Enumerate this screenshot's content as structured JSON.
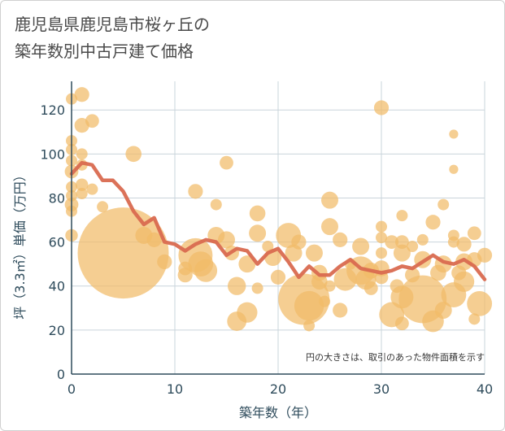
{
  "title": {
    "line1": "鹿児島県鹿児島市桜ヶ丘の",
    "line2": "築年数別中古戸建て価格"
  },
  "chart_data": {
    "type": "scatter",
    "title": "鹿児島県鹿児島市桜ヶ丘の築年数別中古戸建て価格",
    "xlabel": "築年数（年）",
    "ylabel": "坪（3.3㎡）単価（万円）",
    "xlim": [
      0,
      40
    ],
    "ylim": [
      0,
      133
    ],
    "xticks": [
      0,
      10,
      20,
      30,
      40
    ],
    "yticks": [
      0,
      20,
      40,
      60,
      80,
      100,
      120
    ],
    "grid": true,
    "annotation": "円の大きさは、取引のあった物件面積を示す",
    "colors": {
      "bubble": "#f1bb68",
      "line": "#d96a50",
      "grid": "#c9d4db",
      "text": "#2f4c5c"
    },
    "bubbles": [
      {
        "x": 0,
        "y": 125,
        "s": 1
      },
      {
        "x": 0,
        "y": 106,
        "s": 1
      },
      {
        "x": 0,
        "y": 102,
        "s": 1
      },
      {
        "x": 0,
        "y": 97,
        "s": 1
      },
      {
        "x": 0,
        "y": 92,
        "s": 1.2
      },
      {
        "x": 0,
        "y": 85,
        "s": 1
      },
      {
        "x": 0,
        "y": 81,
        "s": 1
      },
      {
        "x": 0,
        "y": 77,
        "s": 1.2
      },
      {
        "x": 0,
        "y": 74,
        "s": 1
      },
      {
        "x": 0,
        "y": 63,
        "s": 1.1
      },
      {
        "x": 1,
        "y": 127,
        "s": 1.3
      },
      {
        "x": 1,
        "y": 113,
        "s": 1.3
      },
      {
        "x": 1,
        "y": 100,
        "s": 1
      },
      {
        "x": 1,
        "y": 95,
        "s": 1
      },
      {
        "x": 1,
        "y": 86,
        "s": 1.1
      },
      {
        "x": 1,
        "y": 82,
        "s": 1
      },
      {
        "x": 2,
        "y": 115,
        "s": 1.2
      },
      {
        "x": 2,
        "y": 84,
        "s": 1
      },
      {
        "x": 3,
        "y": 76,
        "s": 1
      },
      {
        "x": 5,
        "y": 55,
        "s": 8
      },
      {
        "x": 6,
        "y": 100,
        "s": 1.4
      },
      {
        "x": 7,
        "y": 63,
        "s": 1.5
      },
      {
        "x": 8,
        "y": 61,
        "s": 1.3
      },
      {
        "x": 9,
        "y": 51,
        "s": 1.3
      },
      {
        "x": 11,
        "y": 48,
        "s": 1.2
      },
      {
        "x": 11,
        "y": 45,
        "s": 1.3
      },
      {
        "x": 12,
        "y": 83,
        "s": 1.3
      },
      {
        "x": 12,
        "y": 54,
        "s": 3
      },
      {
        "x": 12.5,
        "y": 50,
        "s": 2.2
      },
      {
        "x": 13,
        "y": 47,
        "s": 2
      },
      {
        "x": 14,
        "y": 77,
        "s": 1
      },
      {
        "x": 14,
        "y": 63,
        "s": 1.5
      },
      {
        "x": 15,
        "y": 96,
        "s": 1.2
      },
      {
        "x": 15,
        "y": 61,
        "s": 1.5
      },
      {
        "x": 15.5,
        "y": 55,
        "s": 1.3
      },
      {
        "x": 16,
        "y": 40,
        "s": 1.6
      },
      {
        "x": 16,
        "y": 24,
        "s": 1.7
      },
      {
        "x": 17,
        "y": 28,
        "s": 1.8
      },
      {
        "x": 17,
        "y": 50,
        "s": 1.5
      },
      {
        "x": 18,
        "y": 73,
        "s": 1.4
      },
      {
        "x": 18,
        "y": 64,
        "s": 1.5
      },
      {
        "x": 18,
        "y": 39,
        "s": 1
      },
      {
        "x": 19,
        "y": 58,
        "s": 1
      },
      {
        "x": 19.5,
        "y": 53,
        "s": 1.5
      },
      {
        "x": 20,
        "y": 44,
        "s": 1.3
      },
      {
        "x": 21,
        "y": 63,
        "s": 2.2
      },
      {
        "x": 21.5,
        "y": 55,
        "s": 1.5
      },
      {
        "x": 22,
        "y": 60,
        "s": 1.3
      },
      {
        "x": 22.5,
        "y": 34,
        "s": 4.5
      },
      {
        "x": 23,
        "y": 31,
        "s": 2.6
      },
      {
        "x": 23,
        "y": 22,
        "s": 1
      },
      {
        "x": 23.5,
        "y": 55,
        "s": 1.5
      },
      {
        "x": 24,
        "y": 46,
        "s": 1.4
      },
      {
        "x": 24,
        "y": 42,
        "s": 1.4
      },
      {
        "x": 24.5,
        "y": 33,
        "s": 1
      },
      {
        "x": 25,
        "y": 79,
        "s": 1.5
      },
      {
        "x": 25,
        "y": 67,
        "s": 1.5
      },
      {
        "x": 25,
        "y": 40,
        "s": 1
      },
      {
        "x": 26,
        "y": 61,
        "s": 1.3
      },
      {
        "x": 26,
        "y": 29,
        "s": 1.3
      },
      {
        "x": 26.5,
        "y": 43,
        "s": 2
      },
      {
        "x": 27,
        "y": 50,
        "s": 1
      },
      {
        "x": 28,
        "y": 58,
        "s": 1.5
      },
      {
        "x": 28,
        "y": 47,
        "s": 2.5
      },
      {
        "x": 28.5,
        "y": 43,
        "s": 1.8
      },
      {
        "x": 29,
        "y": 39,
        "s": 1.2
      },
      {
        "x": 29,
        "y": 47,
        "s": 1.4
      },
      {
        "x": 30,
        "y": 121,
        "s": 1.3
      },
      {
        "x": 30,
        "y": 67,
        "s": 1
      },
      {
        "x": 30,
        "y": 62,
        "s": 1
      },
      {
        "x": 30,
        "y": 55,
        "s": 1
      },
      {
        "x": 30,
        "y": 48,
        "s": 1.4
      },
      {
        "x": 30,
        "y": 44,
        "s": 1.2
      },
      {
        "x": 31,
        "y": 60,
        "s": 1.2
      },
      {
        "x": 31,
        "y": 27,
        "s": 2.2
      },
      {
        "x": 31.5,
        "y": 40,
        "s": 1.2
      },
      {
        "x": 32,
        "y": 72,
        "s": 1
      },
      {
        "x": 32,
        "y": 60,
        "s": 1.2
      },
      {
        "x": 32,
        "y": 55,
        "s": 1.5
      },
      {
        "x": 32,
        "y": 35,
        "s": 2
      },
      {
        "x": 32,
        "y": 23,
        "s": 1.2
      },
      {
        "x": 33,
        "y": 58,
        "s": 1
      },
      {
        "x": 33,
        "y": 45,
        "s": 1.3
      },
      {
        "x": 34,
        "y": 61,
        "s": 1
      },
      {
        "x": 34,
        "y": 52,
        "s": 1.5
      },
      {
        "x": 34,
        "y": 34,
        "s": 4.2
      },
      {
        "x": 35,
        "y": 69,
        "s": 1.3
      },
      {
        "x": 35,
        "y": 24,
        "s": 1.9
      },
      {
        "x": 35.5,
        "y": 46,
        "s": 1.4
      },
      {
        "x": 36,
        "y": 77,
        "s": 1
      },
      {
        "x": 36,
        "y": 50,
        "s": 1.5
      },
      {
        "x": 36,
        "y": 29,
        "s": 1.5
      },
      {
        "x": 37,
        "y": 109,
        "s": 0.8
      },
      {
        "x": 37,
        "y": 93,
        "s": 0.8
      },
      {
        "x": 37,
        "y": 63,
        "s": 1
      },
      {
        "x": 37,
        "y": 60,
        "s": 1
      },
      {
        "x": 37,
        "y": 36,
        "s": 2.2
      },
      {
        "x": 37.5,
        "y": 46,
        "s": 1.3
      },
      {
        "x": 38,
        "y": 59,
        "s": 1.3
      },
      {
        "x": 38,
        "y": 51,
        "s": 1.5
      },
      {
        "x": 38,
        "y": 42,
        "s": 1.8
      },
      {
        "x": 39,
        "y": 64,
        "s": 1.2
      },
      {
        "x": 39,
        "y": 52,
        "s": 1.3
      },
      {
        "x": 39,
        "y": 25,
        "s": 1
      },
      {
        "x": 39.5,
        "y": 32,
        "s": 2.2
      },
      {
        "x": 40,
        "y": 54,
        "s": 1.3
      }
    ],
    "series": [
      {
        "x": [
          0,
          1,
          2,
          3,
          4,
          5,
          6,
          7,
          8,
          9,
          10,
          11,
          12,
          13,
          14,
          15,
          16,
          17,
          18,
          19,
          20,
          21,
          22,
          23,
          24,
          25,
          26,
          27,
          28,
          29,
          30,
          31,
          32,
          33,
          34,
          35,
          36,
          37,
          38,
          39,
          40
        ],
        "values": [
          91,
          96,
          95,
          88,
          88,
          83,
          74,
          68,
          71,
          60,
          59,
          56,
          59,
          61,
          60,
          54,
          57,
          56,
          50,
          55,
          57,
          51,
          44,
          49,
          45,
          45,
          49,
          52,
          48,
          47,
          46,
          47,
          49,
          48,
          51,
          54,
          51,
          50,
          52,
          49,
          43
        ]
      }
    ]
  }
}
